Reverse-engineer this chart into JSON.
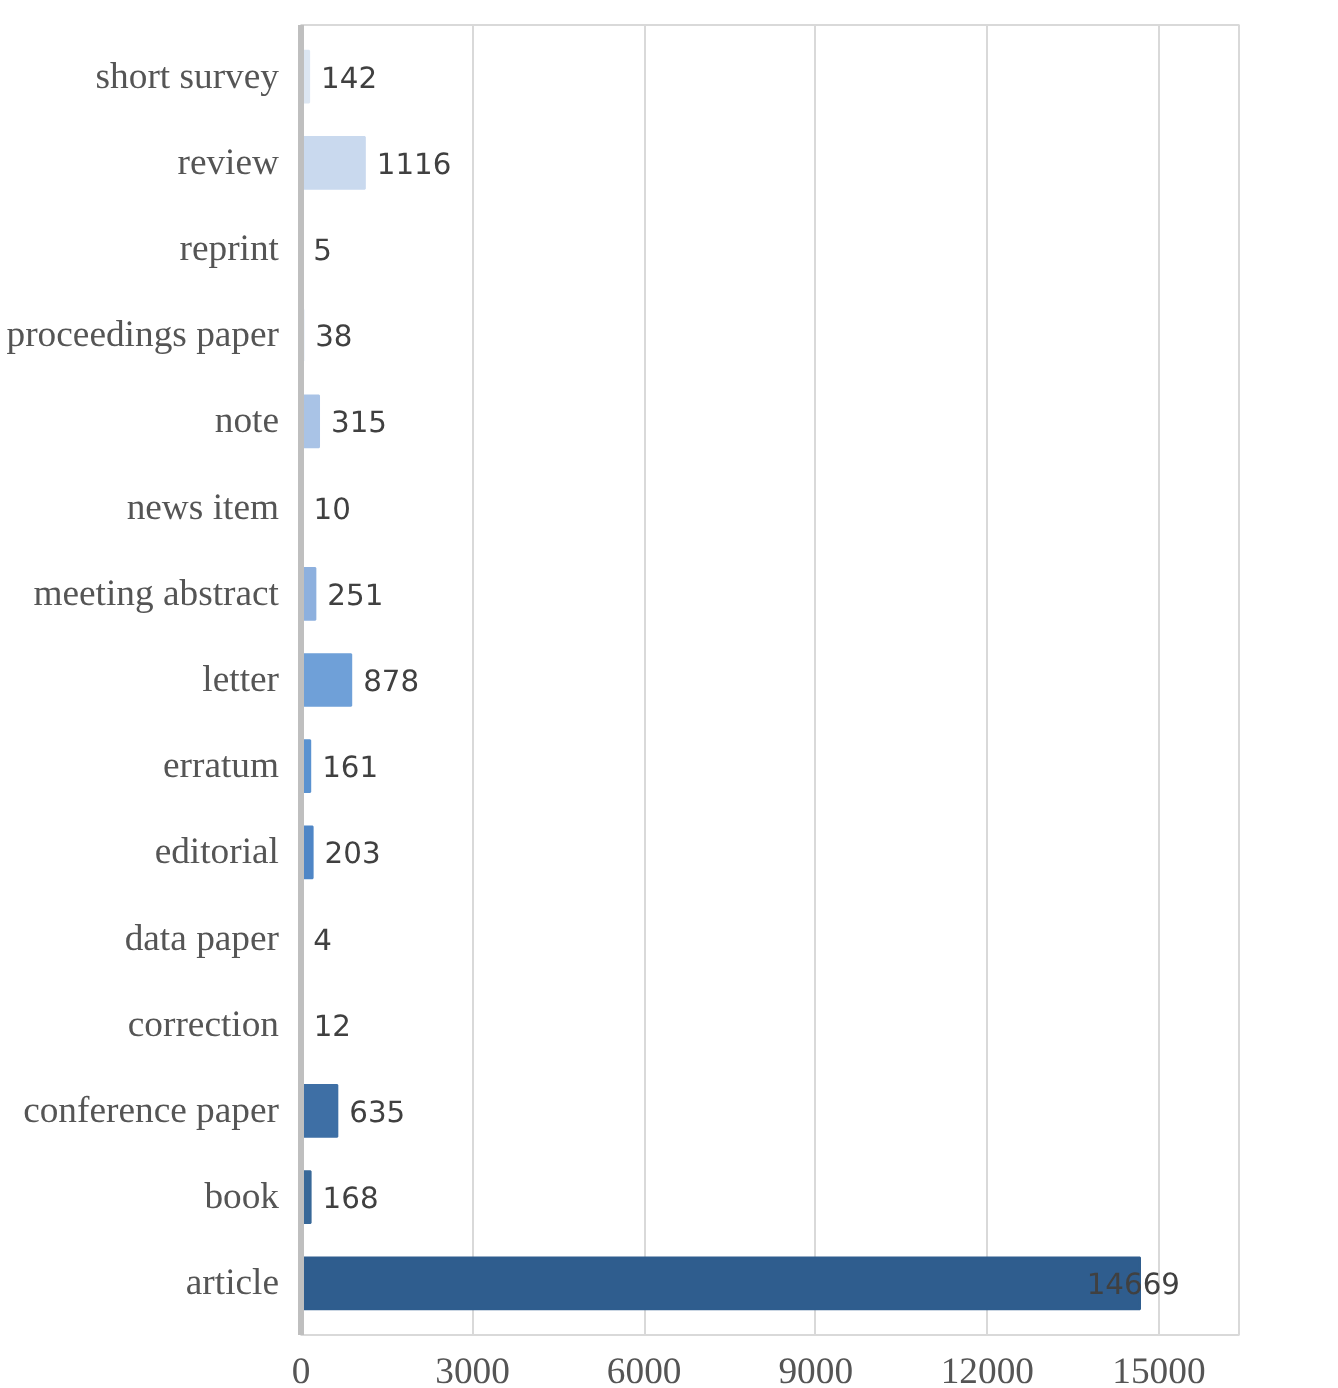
{
  "chart_data": {
    "type": "bar",
    "orientation": "horizontal",
    "categories": [
      "short survey",
      "review",
      "reprint",
      "proceedings paper",
      "note",
      "news item",
      "meeting abstract",
      "letter",
      "erratum",
      "editorial",
      "data paper",
      "correction",
      "conference paper",
      "book",
      "article"
    ],
    "values": [
      142,
      1116,
      5,
      38,
      315,
      10,
      251,
      878,
      161,
      203,
      4,
      12,
      635,
      168,
      14669
    ],
    "colors": [
      "#dce6f2",
      "#c9d9ee",
      "#c0d3ec",
      "#b5cbe8",
      "#a9c3e6",
      "#9dbbe2",
      "#8db0de",
      "#6fa0d8",
      "#5a92d0",
      "#4f86c6",
      "#4a7fbc",
      "#4479b2",
      "#3e6fa5",
      "#386898",
      "#2f5d8e"
    ],
    "xlim": [
      0,
      16400
    ],
    "xticks": [
      0,
      3000,
      6000,
      9000,
      12000,
      15000
    ],
    "grid": "x",
    "data_labels": true
  }
}
